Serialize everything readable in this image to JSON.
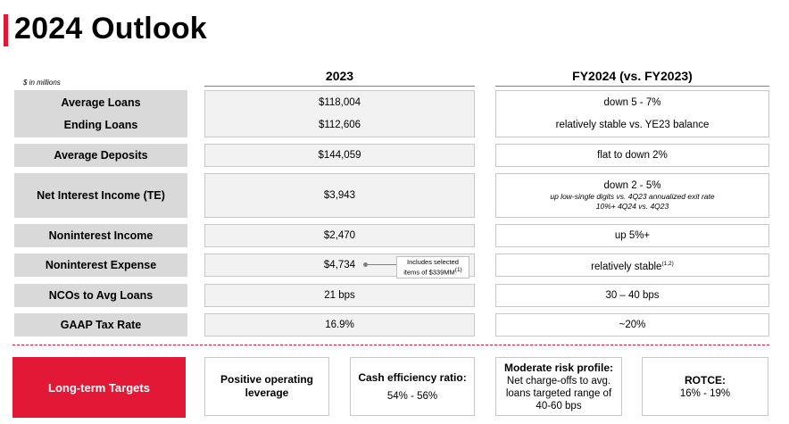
{
  "title": "2024 Outlook",
  "units_note": "$ in millions",
  "columns": {
    "current": "2023",
    "outlook": "FY2024 (vs. FY2023)"
  },
  "rows": [
    {
      "label": "Average Loans",
      "value": "$118,004",
      "outlook": "down 5 - 7%"
    },
    {
      "label": "Ending Loans",
      "value": "$112,606",
      "outlook": "relatively stable vs. YE23 balance"
    },
    {
      "label": "Average Deposits",
      "value": "$144,059",
      "outlook": "flat to down 2%"
    },
    {
      "label": "Net Interest Income (TE)",
      "value": "$3,943",
      "outlook": "down 2 - 5%",
      "outlook_sub1": "up low-single digits vs. 4Q23 annualized exit rate",
      "outlook_sub2": "10%+ 4Q24 vs. 4Q23"
    },
    {
      "label": "Noninterest Income",
      "value": "$2,470",
      "outlook": "up 5%+"
    },
    {
      "label": "Noninterest Expense",
      "value": "$4,734",
      "outlook": "relatively stable",
      "outlook_sup": "(1,2)",
      "note_line1": "Includes selected",
      "note_line2": "items of $339MM",
      "note_sup": "(1)"
    },
    {
      "label": "NCOs to Avg Loans",
      "value": "21 bps",
      "outlook": "30 – 40 bps"
    },
    {
      "label": "GAAP Tax Rate",
      "value": "16.9%",
      "outlook": "~20%"
    }
  ],
  "long_term": {
    "label": "Long-term Targets",
    "targets": [
      {
        "heading": "Positive operating leverage"
      },
      {
        "heading": "Cash efficiency ratio:",
        "body": "54% - 56%"
      },
      {
        "heading": "Moderate risk profile:",
        "body": "Net charge-offs to avg. loans targeted range of 40-60 bps"
      },
      {
        "heading": "ROTCE:",
        "body": "16% - 19%"
      }
    ]
  },
  "colors": {
    "accent": "#e31837",
    "label_bg": "#d9d9d9",
    "value_bg": "#f2f2f2"
  }
}
